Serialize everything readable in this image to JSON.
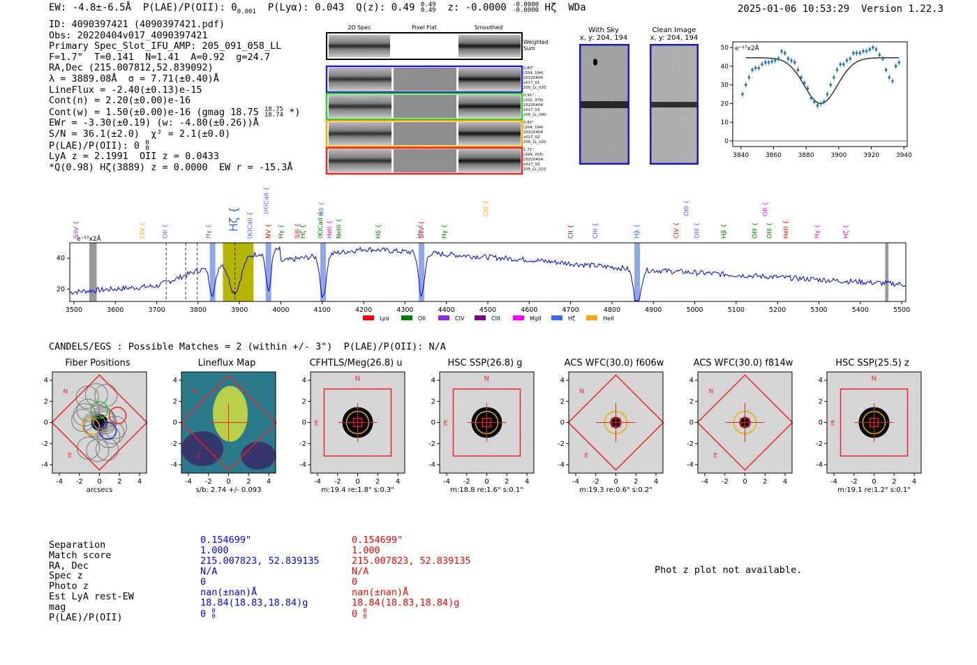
{
  "header": {
    "ew": "EW: -4.8±-6.5Å",
    "plae_label": "P(LAE)/P(OII): 0",
    "plae_sub": "0.001",
    "plya": "P(Lyα): 0.043",
    "qz": "Q(z): 0.49",
    "qz_sup": "0.49",
    "qz_sub": "0.49",
    "z": "z: -0.0000",
    "z_sup": "-0.0000",
    "z_sub": "-0.0000",
    "line": "Hζ",
    "flag": "WDa",
    "timestamp": "2025-01-06 10:53:29",
    "version": "Version 1.22.3"
  },
  "info": {
    "id": "ID: 4090397421 (4090397421.pdf)",
    "obs": "Obs: 20220404v017_4090397421",
    "primary": "Primary Spec_Slot_IFU_AMP: 205_091_058_LL",
    "fparams": "F=1.7\"  T=0.141  N=1.41  A=0.92  g=24.7",
    "radec": "RA,Dec (215.007812,52.839092)",
    "lambda": "λ = 3889.08Å  σ = 7.71(±0.40)Å",
    "lineflux": "LineFlux = -2.40(±0.13)e-15",
    "contn": "Cont(n) = 2.20(±0.00)e-16",
    "contw": "Cont(w) = 1.50(±0.00)e-16 (gmag 18.75",
    "contw_sup": "18.75",
    "contw_sub": "18.74",
    "contw_end": "*)",
    "ewr": "EWr = -3.30(±0.19) (w: -4.80(±0.26))Å",
    "sn": "S/N = 36.1(±2.0)  χ² = 2.1(±0.0)",
    "plae": "P(LAE)/P(OII): 0",
    "plae_sup": "0",
    "plae_sub": "0",
    "lya": "LyA z = 2.1991  OII z = 0.0433",
    "q": "*Q(0.98) Hζ(3889) z = 0.0000  EW r = -15.3Å"
  },
  "spec2d": {
    "cols": [
      "2D Spec",
      "Pixel Flat",
      "Smoothed"
    ],
    "weighted": [
      "Weighted",
      "Sum"
    ],
    "rows": [
      {
        "left": [
          "0.24",
          "1.66",
          "205"
        ],
        "right": [
          "0.83\"",
          "(204, 194)",
          "20220404",
          "v017_01",
          "205_LL_020"
        ],
        "color": "#2222cc"
      },
      {
        "left": [
          "0.21",
          "2.23",
          "185"
        ],
        "right": [
          "0.91\"",
          "(202, 379)",
          "20220404",
          "v017_03",
          "205_LL_040"
        ],
        "color": "#22cc22"
      },
      {
        "left": [
          "0.21",
          "2.10",
          "205"
        ],
        "right": [
          "0.82\"",
          "(204, 194)",
          "20220404",
          "v017_02",
          "205_LL_020"
        ],
        "color": "#ffa500"
      },
      {
        "left": [
          "0.07",
          "1.16",
          "204"
        ],
        "right": [
          "1.71\"",
          "(204, 203)",
          "20220404",
          "v017_02",
          "205_LL_021"
        ],
        "color": "#ee2222"
      }
    ]
  },
  "withsky": {
    "title": "With Sky",
    "coords": "x, y: 204, 194"
  },
  "clean": {
    "title": "Clean Image",
    "coords": "x, y: 204, 194"
  },
  "fit_plot": {
    "exp": "e⁻¹⁷x2Å",
    "xticks": [
      "3840",
      "3860",
      "3880",
      "3900",
      "3920",
      "3940"
    ],
    "yticks": [
      "0",
      "10",
      "20",
      "30",
      "40",
      "50"
    ]
  },
  "spectrum": {
    "exp": "e⁻¹⁷x2Å",
    "xticks": [
      "3500",
      "3600",
      "3700",
      "3800",
      "3900",
      "4000",
      "4100",
      "4200",
      "4300",
      "4400",
      "4500",
      "4600",
      "4700",
      "4800",
      "4900",
      "5000",
      "5100",
      "5200",
      "5300",
      "5400",
      "5500"
    ],
    "yticks": [
      "20",
      "40"
    ],
    "legend": [
      {
        "label": "Lyα",
        "color": "#ff0000"
      },
      {
        "label": "OII",
        "color": "#008000"
      },
      {
        "label": "CIV",
        "color": "#8a2be2"
      },
      {
        "label": "CIII",
        "color": "#800080"
      },
      {
        "label": "MgII",
        "color": "#ff00ff"
      },
      {
        "label": "Hζ",
        "color": "#4169e1"
      },
      {
        "label": "HeII",
        "color": "#ffa500"
      }
    ],
    "line_labels": [
      {
        "t": "SiIV",
        "c": "#8a2be2"
      },
      {
        "t": "CIV",
        "c": "#ffa500"
      },
      {
        "t": "OII",
        "c": "#4169e1"
      },
      {
        "t": "Hγ",
        "c": "#4169e1"
      },
      {
        "t": "Hζ",
        "c": "#4169e1"
      },
      {
        "t": "(K)CaII",
        "c": "#4169e1"
      },
      {
        "t": "(H)CaII",
        "c": "#4169e1"
      },
      {
        "t": "NV",
        "c": "#ff0000"
      },
      {
        "t": "Hγ",
        "c": "#008000"
      },
      {
        "t": "SiII",
        "c": "#ff0000"
      },
      {
        "t": "Hζ",
        "c": "#008000"
      },
      {
        "t": "(K)CaII",
        "c": "#008000"
      },
      {
        "t": "Hδ",
        "c": "#4169e1"
      },
      {
        "t": "HeII",
        "c": "#ff00ff"
      },
      {
        "t": "NeIII",
        "c": "#008000"
      },
      {
        "t": "Hδ",
        "c": "#008000"
      },
      {
        "t": "Hγ",
        "c": "#4169e1"
      },
      {
        "t": "SiIV",
        "c": "#ff0000"
      },
      {
        "t": "Hγ",
        "c": "#008000"
      },
      {
        "t": "CIII",
        "c": "#ffa500"
      },
      {
        "t": "CII",
        "c": "#800080"
      },
      {
        "t": "CIII",
        "c": "#8a2be2"
      },
      {
        "t": "Hβ",
        "c": "#4169e1"
      },
      {
        "t": "CIV",
        "c": "#ff0000"
      },
      {
        "t": "OIII",
        "c": "#4169e1"
      },
      {
        "t": "OIII",
        "c": "#4169e1"
      },
      {
        "t": "Hβ",
        "c": "#008000"
      },
      {
        "t": "OIII",
        "c": "#008000"
      },
      {
        "t": "OII",
        "c": "#ff00ff"
      },
      {
        "t": "OIII",
        "c": "#008000"
      },
      {
        "t": "HeII",
        "c": "#ff0000"
      },
      {
        "t": "Hγ",
        "c": "#ff00ff"
      },
      {
        "t": "Hζ",
        "c": "#ff00ff"
      }
    ]
  },
  "candels": {
    "text": "CANDELS/EGS : Possible Matches = 2 (within +/- 3\")  P(LAE)/P(OII): N/A"
  },
  "cutouts": [
    {
      "title": "Fiber Positions",
      "caption": "arcsecs"
    },
    {
      "title": "Lineflux Map",
      "caption": "s/b: 2.74 +/- 0.093"
    },
    {
      "title": "CFHTLS/Meg(26.8) u",
      "caption": "m:19.4  re:1.8\"  s:0.3\""
    },
    {
      "title": "HSC SSP(26.8) g",
      "caption": "m:18.8  re:1.6\"  s:0.1\""
    },
    {
      "title": "ACS WFC(30.0) f606w",
      "caption": "m:19.3  re:0.6\"  s:0.2\""
    },
    {
      "title": "ACS WFC(30.0) f814w",
      "caption": ""
    },
    {
      "title": "HSC SSP(25.5) z",
      "caption": "m:19.1  re:1.2\"  s:0.1\""
    }
  ],
  "cutout_axis": {
    "ticks": [
      "-4",
      "-2",
      "0",
      "2",
      "4"
    ],
    "n": "N",
    "e": "E"
  },
  "matches": {
    "labels": [
      "Separation",
      "Match score",
      "RA, Dec",
      "Spec z",
      "Photo z",
      "Est LyA rest-EW",
      "mag",
      "P(LAE)/P(OII)"
    ],
    "blue": [
      "0.154699\"",
      "1.000",
      "215.007823, 52.839135",
      "N/A",
      "0",
      "nan(±nan)Å",
      "18.84(18.83,18.84)g",
      "0"
    ],
    "red": [
      "0.154699\"",
      "1.000",
      "215.007823, 52.839135",
      "N/A",
      "0",
      "nan(±nan)Å",
      "18.84(18.83,18.84)g",
      "0"
    ],
    "plae_sup": "0",
    "plae_sub": "0"
  },
  "photz": "Phot z plot not available."
}
